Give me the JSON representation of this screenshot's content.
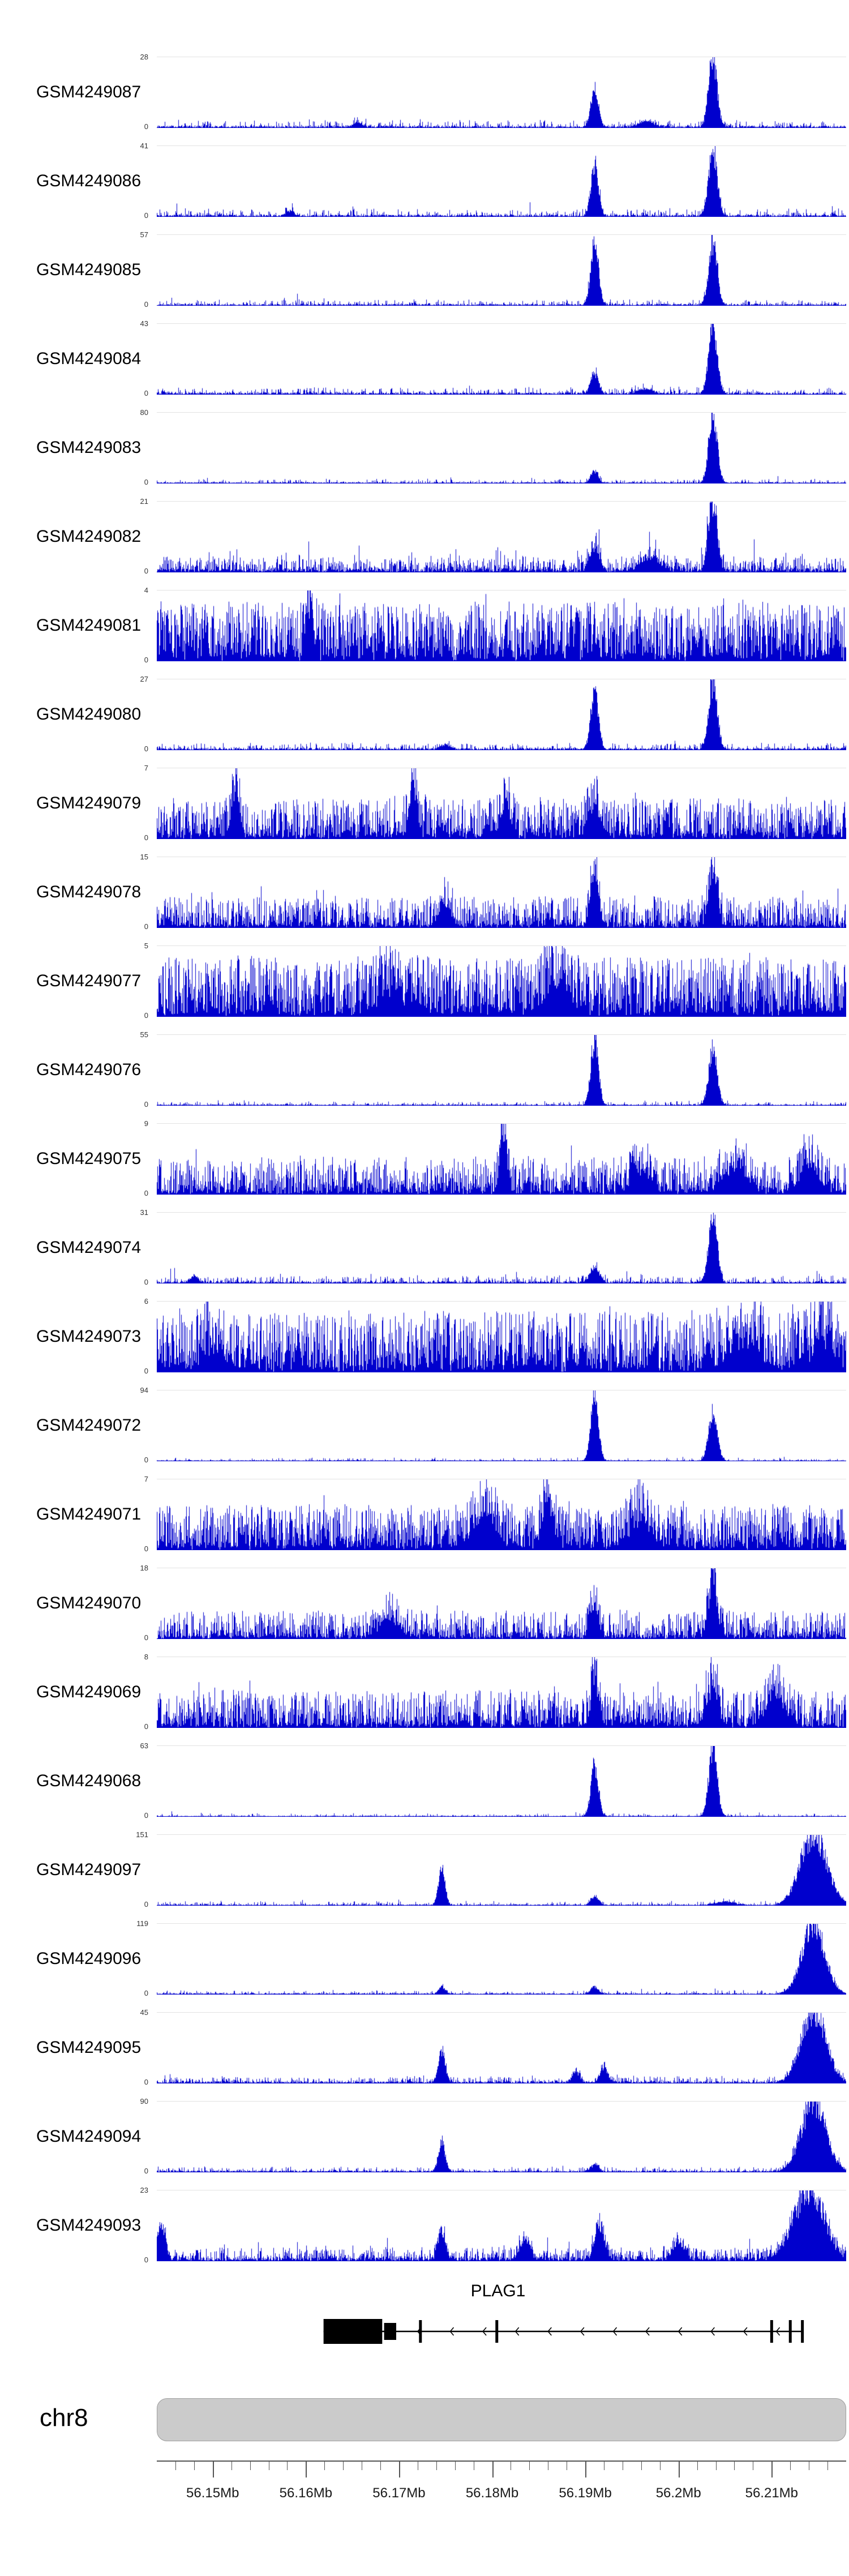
{
  "colors": {
    "signal": "#0000CD",
    "gene": "#000000",
    "ideogram_fill": "#cbcbcb",
    "ideogram_border": "#9e9e9e",
    "axis": "#555555"
  },
  "track_axis": {
    "ymin_label": "0"
  },
  "chromosome": {
    "label": "chr8"
  },
  "gene_track": {
    "label": "PLAG1",
    "strand": "-",
    "start_mb": 56.1619,
    "end_mb": 56.2134,
    "utr_exon": {
      "start_mb": 56.1619,
      "end_mb": 56.1682
    },
    "cds_exon": {
      "start_mb": 56.1684,
      "end_mb": 56.1697
    },
    "exon_ticks_mb": [
      56.1723,
      56.1805,
      56.21,
      56.212,
      56.2133
    ],
    "arrows": {
      "start_mb": 56.172,
      "end_mb": 56.2125,
      "step_mb": 0.0035
    }
  },
  "axis": {
    "unit": "Mb",
    "xmin_mb": 56.144,
    "xmax_mb": 56.218,
    "minor_step_mb": 0.002,
    "major_ticks": [
      {
        "mb": 56.15,
        "label": "56.15Mb"
      },
      {
        "mb": 56.16,
        "label": "56.16Mb"
      },
      {
        "mb": 56.17,
        "label": "56.17Mb"
      },
      {
        "mb": 56.18,
        "label": "56.18Mb"
      },
      {
        "mb": 56.19,
        "label": "56.19Mb"
      },
      {
        "mb": 56.2,
        "label": "56.2Mb"
      },
      {
        "mb": 56.21,
        "label": "56.21Mb"
      }
    ]
  },
  "chart_data": {
    "type": "area",
    "x_range_mb": [
      56.144,
      56.218
    ],
    "x_axis_labels": [
      "56.15Mb",
      "56.16Mb",
      "56.17Mb",
      "56.18Mb",
      "56.19Mb",
      "56.2Mb",
      "56.21Mb"
    ],
    "note": "Genome coverage tracks; peaks given as [position_mb, height_fraction_of_ymax, width_mb]",
    "tracks": [
      {
        "name": "GSM4249087",
        "ymax": 28,
        "seed": 101,
        "base": 0.03,
        "density": 0.6,
        "pow": 3.5,
        "amp": 0.09,
        "spikeProb": 0.02,
        "spikeAmp": 0.12,
        "peaks": [
          [
            56.191,
            0.52,
            0.0004
          ],
          [
            56.2037,
            0.95,
            0.00045
          ],
          [
            56.1965,
            0.08,
            0.0008
          ],
          [
            56.1655,
            0.05,
            0.0006
          ]
        ]
      },
      {
        "name": "GSM4249086",
        "ymax": 41,
        "seed": 102,
        "base": 0.03,
        "density": 0.6,
        "pow": 3.5,
        "amp": 0.09,
        "spikeProb": 0.02,
        "spikeAmp": 0.12,
        "peaks": [
          [
            56.191,
            0.7,
            0.0004
          ],
          [
            56.2037,
            0.93,
            0.00045
          ],
          [
            56.1583,
            0.07,
            0.0004
          ]
        ]
      },
      {
        "name": "GSM4249085",
        "ymax": 57,
        "seed": 103,
        "base": 0.025,
        "density": 0.55,
        "pow": 3.5,
        "amp": 0.07,
        "spikeProb": 0.015,
        "spikeAmp": 0.1,
        "peaks": [
          [
            56.191,
            0.93,
            0.0004
          ],
          [
            56.2037,
            0.85,
            0.00045
          ]
        ]
      },
      {
        "name": "GSM4249084",
        "ymax": 43,
        "seed": 104,
        "base": 0.03,
        "density": 0.6,
        "pow": 3.5,
        "amp": 0.08,
        "spikeProb": 0.02,
        "spikeAmp": 0.1,
        "peaks": [
          [
            56.191,
            0.3,
            0.0004
          ],
          [
            56.2037,
            0.93,
            0.00045
          ],
          [
            56.1965,
            0.06,
            0.0008
          ]
        ]
      },
      {
        "name": "GSM4249083",
        "ymax": 80,
        "seed": 105,
        "base": 0.02,
        "density": 0.5,
        "pow": 4,
        "amp": 0.05,
        "spikeProb": 0.01,
        "spikeAmp": 0.08,
        "peaks": [
          [
            56.191,
            0.16,
            0.0004
          ],
          [
            56.2037,
            0.96,
            0.00045
          ]
        ]
      },
      {
        "name": "GSM4249082",
        "ymax": 21,
        "seed": 106,
        "base": 0.05,
        "density": 0.9,
        "pow": 2.2,
        "amp": 0.2,
        "spikeProb": 0.05,
        "spikeAmp": 0.28,
        "peaks": [
          [
            56.191,
            0.32,
            0.0005
          ],
          [
            56.2037,
            0.93,
            0.00045
          ],
          [
            56.197,
            0.18,
            0.001
          ]
        ]
      },
      {
        "name": "GSM4249081",
        "ymax": 4,
        "seed": 107,
        "base": 0.07,
        "density": 1,
        "pow": 1.25,
        "amp": 0.8,
        "spikeProb": 0.03,
        "spikeAmp": 0.2,
        "peaks": [
          [
            56.1605,
            0.75,
            0.0003
          ]
        ]
      },
      {
        "name": "GSM4249080",
        "ymax": 27,
        "seed": 108,
        "base": 0.03,
        "density": 0.6,
        "pow": 3.5,
        "amp": 0.08,
        "spikeProb": 0.02,
        "spikeAmp": 0.1,
        "peaks": [
          [
            56.191,
            0.82,
            0.0004
          ],
          [
            56.2037,
            0.93,
            0.00045
          ],
          [
            56.175,
            0.06,
            0.0006
          ]
        ]
      },
      {
        "name": "GSM4249079",
        "ymax": 7,
        "seed": 109,
        "base": 0.05,
        "density": 1,
        "pow": 1.6,
        "amp": 0.55,
        "spikeProb": 0.02,
        "spikeAmp": 0.2,
        "peaks": [
          [
            56.1525,
            0.6,
            0.0004
          ],
          [
            56.1715,
            0.65,
            0.0004
          ],
          [
            56.1815,
            0.45,
            0.0005
          ],
          [
            56.191,
            0.4,
            0.0006
          ]
        ]
      },
      {
        "name": "GSM4249078",
        "ymax": 15,
        "seed": 110,
        "base": 0.04,
        "density": 1,
        "pow": 1.9,
        "amp": 0.42,
        "spikeProb": 0.02,
        "spikeAmp": 0.2,
        "peaks": [
          [
            56.191,
            0.75,
            0.0004
          ],
          [
            56.2037,
            0.8,
            0.00045
          ],
          [
            56.175,
            0.3,
            0.0006
          ]
        ]
      },
      {
        "name": "GSM4249077",
        "ymax": 5,
        "seed": 111,
        "base": 0.07,
        "density": 1,
        "pow": 1.3,
        "amp": 0.8,
        "spikeProb": 0.03,
        "spikeAmp": 0.15,
        "peaks": [
          [
            56.169,
            0.3,
            0.0012
          ],
          [
            56.187,
            0.35,
            0.0012
          ]
        ]
      },
      {
        "name": "GSM4249076",
        "ymax": 55,
        "seed": 112,
        "base": 0.02,
        "density": 0.5,
        "pow": 4,
        "amp": 0.05,
        "spikeProb": 0.01,
        "spikeAmp": 0.08,
        "peaks": [
          [
            56.191,
            0.93,
            0.0004
          ],
          [
            56.2037,
            0.8,
            0.00045
          ]
        ]
      },
      {
        "name": "GSM4249075",
        "ymax": 9,
        "seed": 113,
        "base": 0.05,
        "density": 1,
        "pow": 1.7,
        "amp": 0.5,
        "spikeProb": 0.02,
        "spikeAmp": 0.2,
        "peaks": [
          [
            56.1812,
            0.9,
            0.00035
          ],
          [
            56.206,
            0.35,
            0.0012
          ],
          [
            56.214,
            0.4,
            0.0009
          ],
          [
            56.196,
            0.3,
            0.001
          ]
        ]
      },
      {
        "name": "GSM4249074",
        "ymax": 31,
        "seed": 114,
        "base": 0.03,
        "density": 0.65,
        "pow": 3.5,
        "amp": 0.09,
        "spikeProb": 0.03,
        "spikeAmp": 0.14,
        "peaks": [
          [
            56.191,
            0.22,
            0.0005
          ],
          [
            56.2037,
            0.93,
            0.00045
          ],
          [
            56.148,
            0.1,
            0.0004
          ]
        ]
      },
      {
        "name": "GSM4249073",
        "ymax": 6,
        "seed": 115,
        "base": 0.07,
        "density": 1,
        "pow": 1.3,
        "amp": 0.82,
        "spikeProb": 0.03,
        "spikeAmp": 0.15,
        "peaks": [
          [
            56.207,
            0.35,
            0.0015
          ],
          [
            56.2155,
            0.4,
            0.001
          ],
          [
            56.15,
            0.25,
            0.001
          ]
        ]
      },
      {
        "name": "GSM4249072",
        "ymax": 94,
        "seed": 116,
        "base": 0.015,
        "density": 0.45,
        "pow": 4,
        "amp": 0.04,
        "spikeProb": 0.008,
        "spikeAmp": 0.06,
        "peaks": [
          [
            56.191,
            0.94,
            0.0004
          ],
          [
            56.2037,
            0.7,
            0.00045
          ]
        ]
      },
      {
        "name": "GSM4249071",
        "ymax": 7,
        "seed": 117,
        "base": 0.06,
        "density": 1,
        "pow": 1.5,
        "amp": 0.6,
        "spikeProb": 0.02,
        "spikeAmp": 0.2,
        "peaks": [
          [
            56.186,
            0.7,
            0.0005
          ],
          [
            56.179,
            0.4,
            0.0012
          ],
          [
            56.196,
            0.35,
            0.0012
          ]
        ]
      },
      {
        "name": "GSM4249070",
        "ymax": 18,
        "seed": 118,
        "base": 0.04,
        "density": 1,
        "pow": 2,
        "amp": 0.38,
        "spikeProb": 0.02,
        "spikeAmp": 0.15,
        "peaks": [
          [
            56.191,
            0.45,
            0.0004
          ],
          [
            56.2037,
            0.82,
            0.00045
          ],
          [
            56.169,
            0.25,
            0.001
          ]
        ]
      },
      {
        "name": "GSM4249069",
        "ymax": 8,
        "seed": 119,
        "base": 0.05,
        "density": 1,
        "pow": 1.7,
        "amp": 0.5,
        "spikeProb": 0.02,
        "spikeAmp": 0.2,
        "peaks": [
          [
            56.191,
            0.6,
            0.0004
          ],
          [
            56.2037,
            0.6,
            0.0005
          ],
          [
            56.2105,
            0.4,
            0.001
          ]
        ]
      },
      {
        "name": "GSM4249068",
        "ymax": 63,
        "seed": 120,
        "base": 0.015,
        "density": 0.45,
        "pow": 4,
        "amp": 0.04,
        "spikeProb": 0.008,
        "spikeAmp": 0.06,
        "peaks": [
          [
            56.191,
            0.72,
            0.0004
          ],
          [
            56.2037,
            0.95,
            0.00045
          ]
        ]
      },
      {
        "name": "GSM4249097",
        "ymax": 151,
        "seed": 121,
        "base": 0.02,
        "density": 0.5,
        "pow": 4,
        "amp": 0.05,
        "spikeProb": 0.01,
        "spikeAmp": 0.08,
        "peaks": [
          [
            56.1746,
            0.5,
            0.00035
          ],
          [
            56.191,
            0.12,
            0.0004
          ],
          [
            56.2145,
            0.98,
            0.0014
          ],
          [
            56.205,
            0.05,
            0.001
          ]
        ]
      },
      {
        "name": "GSM4249096",
        "ymax": 119,
        "seed": 122,
        "base": 0.02,
        "density": 0.5,
        "pow": 4,
        "amp": 0.05,
        "spikeProb": 0.01,
        "spikeAmp": 0.08,
        "peaks": [
          [
            56.1746,
            0.1,
            0.00035
          ],
          [
            56.191,
            0.1,
            0.0004
          ],
          [
            56.2145,
            0.98,
            0.0012
          ]
        ]
      },
      {
        "name": "GSM4249095",
        "ymax": 45,
        "seed": 123,
        "base": 0.03,
        "density": 0.7,
        "pow": 3,
        "amp": 0.08,
        "spikeProb": 0.02,
        "spikeAmp": 0.1,
        "peaks": [
          [
            56.1746,
            0.45,
            0.00035
          ],
          [
            56.189,
            0.16,
            0.0004
          ],
          [
            56.192,
            0.2,
            0.0004
          ],
          [
            56.2145,
            0.98,
            0.0013
          ]
        ]
      },
      {
        "name": "GSM4249094",
        "ymax": 90,
        "seed": 124,
        "base": 0.025,
        "density": 0.6,
        "pow": 3.5,
        "amp": 0.06,
        "spikeProb": 0.015,
        "spikeAmp": 0.08,
        "peaks": [
          [
            56.1746,
            0.42,
            0.00035
          ],
          [
            56.191,
            0.1,
            0.0004
          ],
          [
            56.2145,
            0.98,
            0.0013
          ]
        ]
      },
      {
        "name": "GSM4249093",
        "ymax": 23,
        "seed": 125,
        "base": 0.05,
        "density": 0.9,
        "pow": 2.2,
        "amp": 0.16,
        "spikeProb": 0.04,
        "spikeAmp": 0.2,
        "peaks": [
          [
            56.1445,
            0.48,
            0.0004
          ],
          [
            56.1746,
            0.36,
            0.0004
          ],
          [
            56.1835,
            0.28,
            0.0005
          ],
          [
            56.1915,
            0.48,
            0.0005
          ],
          [
            56.2,
            0.26,
            0.0006
          ],
          [
            56.214,
            0.95,
            0.0016
          ]
        ]
      }
    ]
  }
}
